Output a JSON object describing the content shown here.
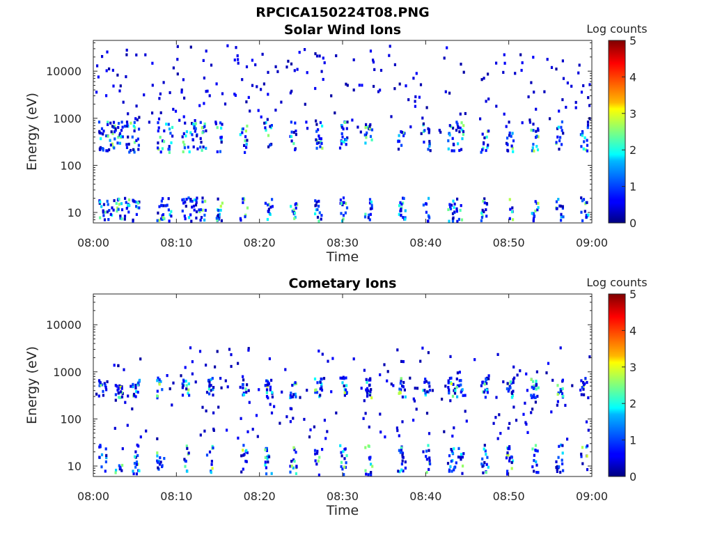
{
  "figure": {
    "title": "RPCICA150224T08.PNG"
  },
  "chart_data": [
    {
      "type": "heatmap",
      "title": "Solar Wind Ions",
      "xlabel": "Time",
      "ylabel": "Energy (eV)",
      "x_ticks": [
        "08:00",
        "08:10",
        "08:20",
        "08:30",
        "08:40",
        "08:50",
        "09:00"
      ],
      "x_range": [
        "08:00",
        "09:00"
      ],
      "y_scale": "log",
      "y_ticks": [
        10,
        100,
        1000,
        10000
      ],
      "y_tick_labels": [
        "10",
        "100",
        "1000",
        "10000"
      ],
      "ylim": [
        6,
        45000
      ],
      "colorbar": {
        "label": "Log counts",
        "range": [
          0,
          5
        ],
        "ticks": [
          0,
          1,
          2,
          3,
          4,
          5
        ],
        "tick_labels": [
          "0",
          "1",
          "2",
          "3",
          "4",
          "5"
        ]
      },
      "burst_times": [
        "08:01",
        "08:02",
        "08:03",
        "08:04",
        "08:05",
        "08:08",
        "08:09",
        "08:11",
        "08:12",
        "08:13",
        "08:15",
        "08:18",
        "08:21",
        "08:24",
        "08:27",
        "08:30",
        "08:33",
        "08:37",
        "08:40",
        "08:43",
        "08:44",
        "08:47",
        "08:50",
        "08:53",
        "08:56",
        "08:59"
      ],
      "bands": {
        "low_energy_eV": [
          6,
          22
        ],
        "solar_wind_eV": [
          200,
          900
        ]
      },
      "max_log_counts": 2.8,
      "sparse_noise_eV": [
        500,
        40000
      ]
    },
    {
      "type": "heatmap",
      "title": "Cometary Ions",
      "xlabel": "Time",
      "ylabel": "Energy (eV)",
      "x_ticks": [
        "08:00",
        "08:10",
        "08:20",
        "08:30",
        "08:40",
        "08:50",
        "09:00"
      ],
      "x_range": [
        "08:00",
        "09:00"
      ],
      "y_scale": "log",
      "y_ticks": [
        10,
        100,
        1000,
        10000
      ],
      "y_tick_labels": [
        "10",
        "100",
        "1000",
        "10000"
      ],
      "ylim": [
        6,
        45000
      ],
      "colorbar": {
        "label": "Log counts",
        "range": [
          0,
          5
        ],
        "ticks": [
          0,
          1,
          2,
          3,
          4,
          5
        ],
        "tick_labels": [
          "0",
          "1",
          "2",
          "3",
          "4",
          "5"
        ]
      },
      "burst_times": [
        "08:01",
        "08:03",
        "08:05",
        "08:08",
        "08:11",
        "08:14",
        "08:18",
        "08:21",
        "08:24",
        "08:27",
        "08:30",
        "08:33",
        "08:37",
        "08:40",
        "08:43",
        "08:44",
        "08:47",
        "08:50",
        "08:53",
        "08:56",
        "08:59"
      ],
      "bands": {
        "low_energy_eV": [
          6,
          30
        ],
        "mid_energy_eV": [
          300,
          800
        ]
      },
      "max_log_counts": 3.0,
      "sparse_noise_eV": [
        40,
        3500
      ]
    }
  ]
}
